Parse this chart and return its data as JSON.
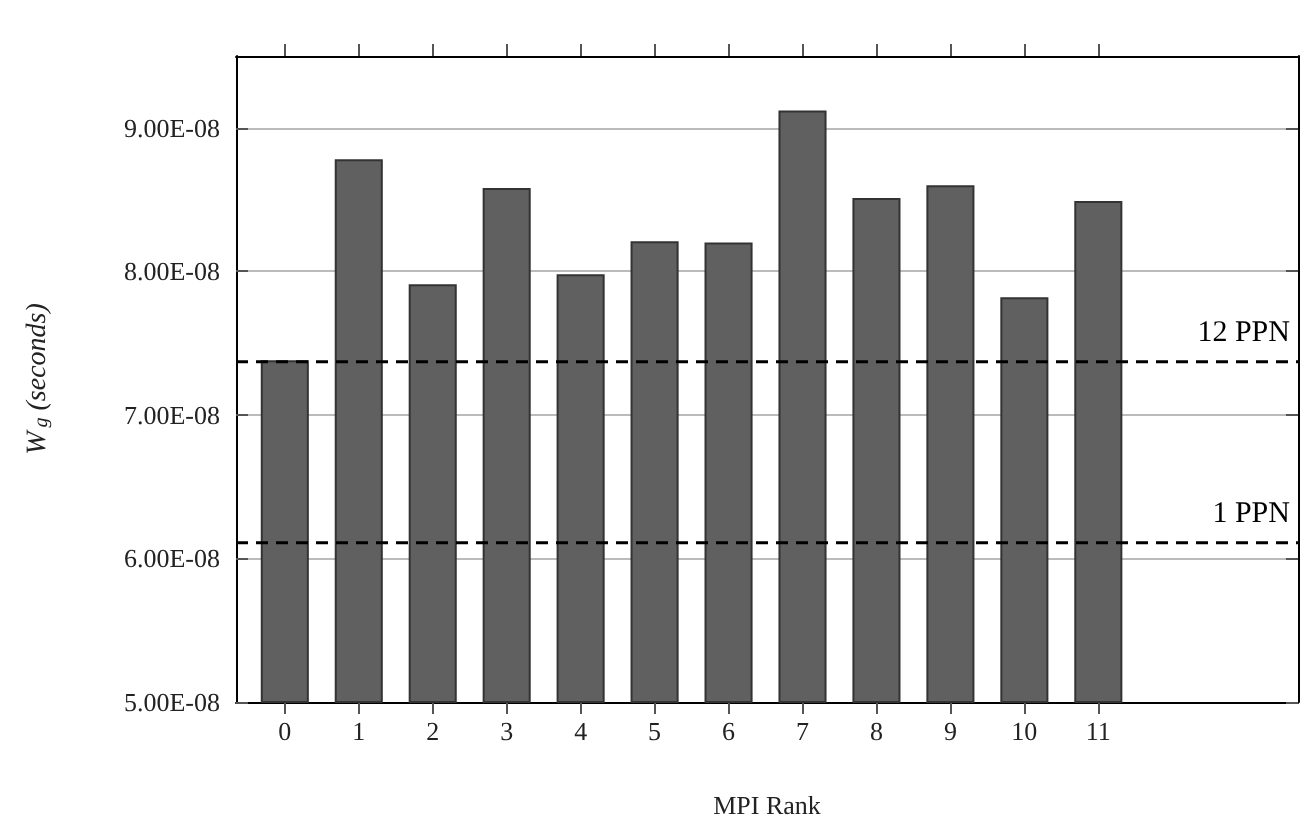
{
  "chart_data": {
    "type": "bar",
    "xlabel": "MPI Rank",
    "ylabel": "W$_{g}$ (seconds)",
    "x": [
      0,
      1,
      2,
      3,
      4,
      5,
      6,
      7,
      8,
      9,
      10,
      11
    ],
    "values": [
      7.38e-08,
      8.78e-08,
      7.91e-08,
      8.58e-08,
      7.98e-08,
      8.21e-08,
      8.2e-08,
      9.12e-08,
      8.51e-08,
      8.6e-08,
      7.82e-08,
      8.49e-08
    ],
    "color": "#606060",
    "xlim": [
      -0.66,
      13.7
    ],
    "xticks": [
      0,
      1,
      2,
      3,
      4,
      5,
      6,
      7,
      8,
      9,
      10,
      11
    ],
    "ylim": [
      5e-08,
      9.5e-08
    ],
    "yticks": [
      {
        "value": 5e-08,
        "label": "5.00E-08"
      },
      {
        "value": 6e-08,
        "label": "6.00E-08"
      },
      {
        "value": 7e-08,
        "label": "7.00E-08"
      },
      {
        "value": 8e-08,
        "label": "8.00E-08"
      },
      {
        "value": 9e-08,
        "label": "9.00E-08"
      }
    ],
    "grid": "y",
    "ref_lines": [
      {
        "axis": "y",
        "value": 7.37e-08,
        "label": "12 PPN",
        "color": "#000000",
        "line_style": "dashed"
      },
      {
        "axis": "y",
        "value": 6.11e-08,
        "label": "1 PPN",
        "color": "#000000",
        "line_style": "dashed"
      }
    ]
  }
}
